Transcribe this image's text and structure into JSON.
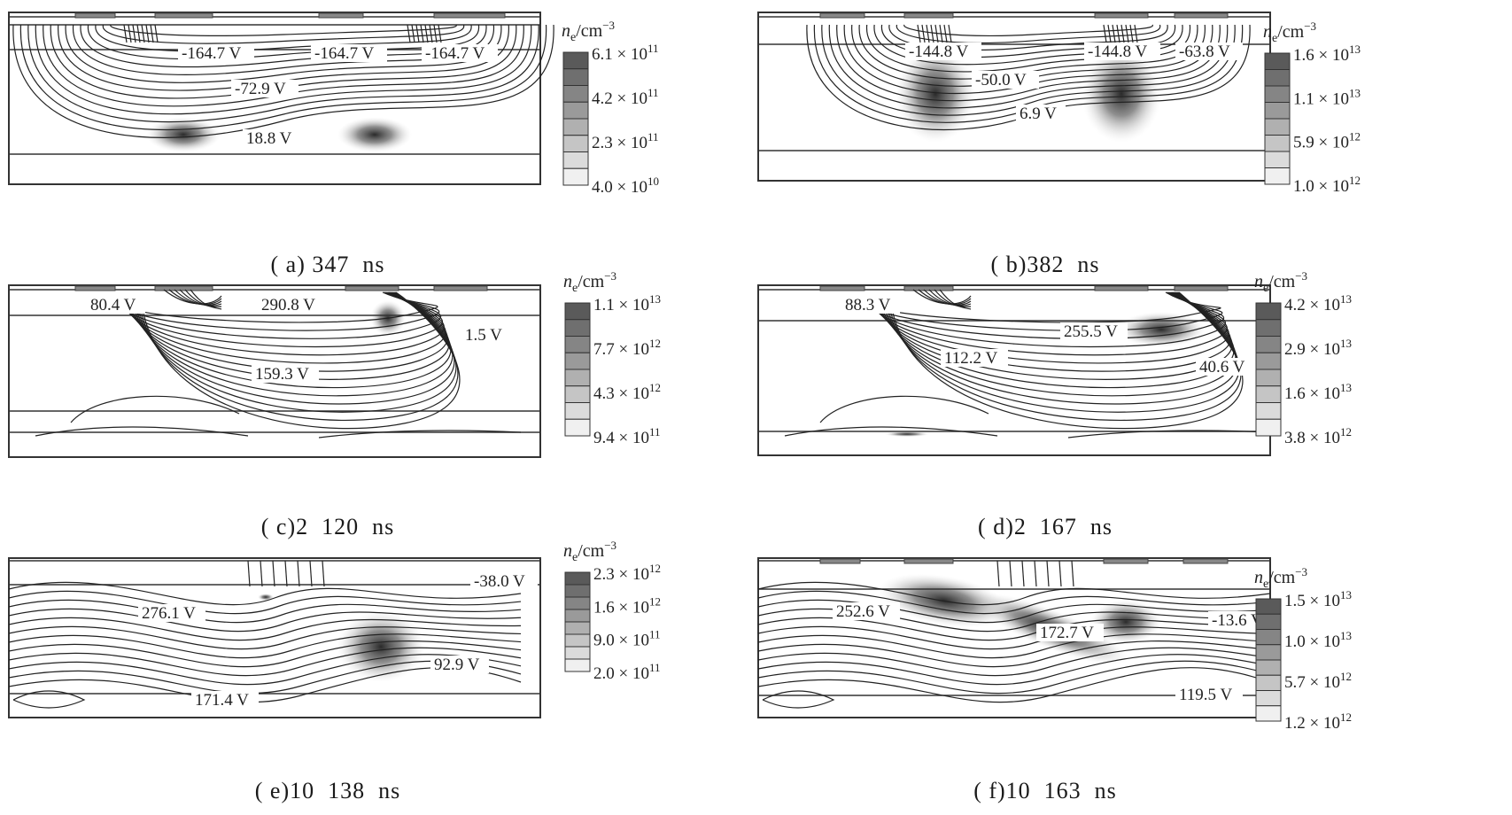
{
  "panels": [
    {
      "id": "a",
      "caption": "( a) 347  ns",
      "colorbar": {
        "title": "n",
        "title_sub": "e",
        "title_unit": "/cm",
        "title_sup": "−3",
        "ticks": [
          "6.1 × 10^11",
          "4.2 × 10^11",
          "2.3 × 10^11",
          "4.0 × 10^10"
        ]
      },
      "labels": [
        "-164.7 V",
        "-164.7 V",
        "-164.7 V",
        "-72.9 V",
        "18.8 V"
      ]
    },
    {
      "id": "b",
      "caption": "( b)382  ns",
      "colorbar": {
        "title": "n",
        "title_sub": "e",
        "title_unit": "/cm",
        "title_sup": "−3",
        "ticks": [
          "1.6 × 10^13",
          "1.1 × 10^13",
          "5.9 × 10^12",
          "1.0 × 10^12"
        ]
      },
      "labels": [
        "-144.8 V",
        "-144.8 V",
        "-63.8 V",
        "-50.0 V",
        "6.9 V"
      ]
    },
    {
      "id": "c",
      "caption": "( c)2  120  ns",
      "colorbar": {
        "title": "n",
        "title_sub": "e",
        "title_unit": "/cm",
        "title_sup": "−3",
        "ticks": [
          "1.1 × 10^13",
          "7.7 × 10^12",
          "4.3 × 10^12",
          "9.4 × 10^11"
        ]
      },
      "labels": [
        "80.4 V",
        "290.8 V",
        "1.5 V",
        "159.3 V"
      ]
    },
    {
      "id": "d",
      "caption": "( d)2  167  ns",
      "colorbar": {
        "title": "n",
        "title_sub": "e",
        "title_unit": "/cm",
        "title_sup": "−3",
        "ticks": [
          "4.2 × 10^13",
          "2.9 × 10^13",
          "1.6 × 10^13",
          "3.8 × 10^12"
        ]
      },
      "labels": [
        "88.3 V",
        "255.5 V",
        "112.2 V",
        "40.6 V"
      ]
    },
    {
      "id": "e",
      "caption": "( e)10  138  ns",
      "colorbar": {
        "title": "n",
        "title_sub": "e",
        "title_unit": "/cm",
        "title_sup": "−3",
        "ticks": [
          "2.3 × 10^12",
          "1.6 × 10^12",
          "9.0 × 10^11",
          "2.0 × 10^11"
        ]
      },
      "labels": [
        "-38.0 V",
        "276.1 V",
        "92.9 V",
        "171.4 V"
      ]
    },
    {
      "id": "f",
      "caption": "( f)10  163  ns",
      "colorbar": {
        "title": "n",
        "title_sub": "e",
        "title_unit": "/cm",
        "title_sup": "−3",
        "ticks": [
          "1.5 × 10^13",
          "1.0 × 10^13",
          "5.7 × 10^12",
          "1.2 × 10^12"
        ]
      },
      "labels": [
        "252.6 V",
        "172.7 V",
        "-13.6 V",
        "119.5 V"
      ]
    }
  ]
}
